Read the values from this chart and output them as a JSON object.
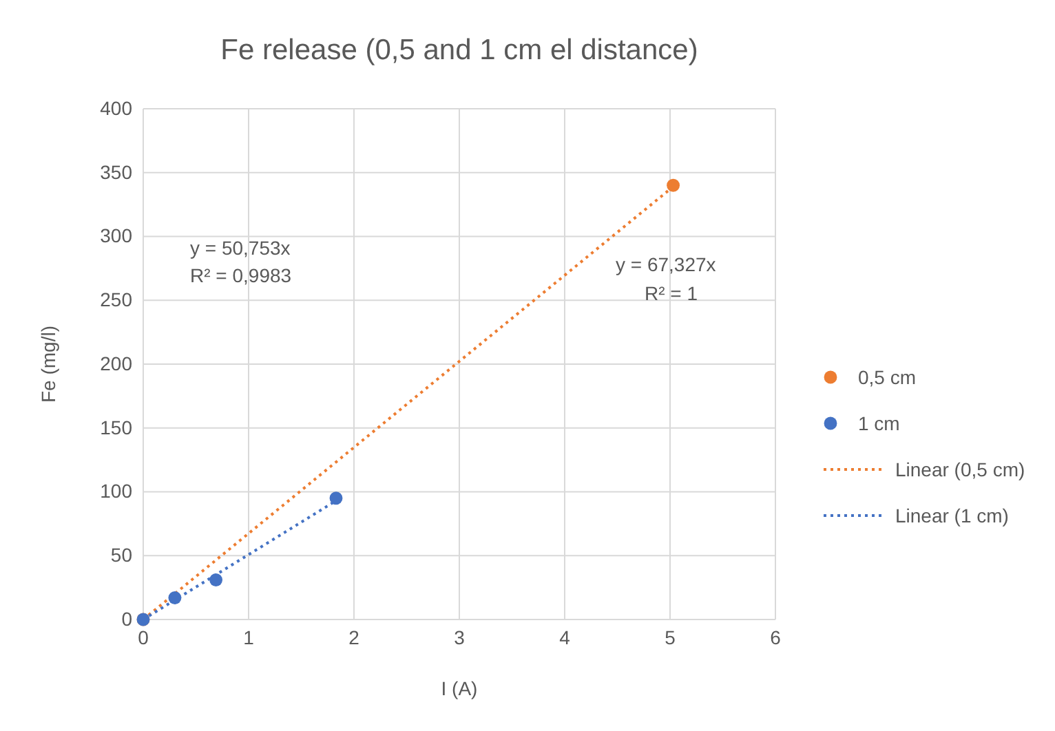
{
  "chart_data": {
    "type": "scatter",
    "title": "Fe release (0,5 and 1 cm el distance)",
    "xlabel": "I (A)",
    "ylabel": "Fe (mg/l)",
    "xlim": [
      0,
      6
    ],
    "xticks": [
      0,
      1,
      2,
      3,
      4,
      5,
      6
    ],
    "ylim": [
      0,
      400
    ],
    "yticks": [
      0,
      50,
      100,
      150,
      200,
      250,
      300,
      350,
      400
    ],
    "grid": true,
    "legend": "right",
    "series": [
      {
        "name": "0,5 cm",
        "color": "#ed7d31",
        "marker": "circle",
        "x": [
          0,
          5.03
        ],
        "values": [
          0,
          340
        ]
      },
      {
        "name": "1 cm",
        "color": "#4472c4",
        "marker": "circle",
        "x": [
          0,
          0.3,
          0.69,
          1.83
        ],
        "values": [
          0,
          17,
          31,
          95
        ]
      },
      {
        "name": "Linear (0,5 cm)",
        "type": "line",
        "line_style": "dotted",
        "marker": "none",
        "color": "#ed7d31",
        "x": [
          0,
          5.03
        ],
        "values": [
          0,
          339
        ]
      },
      {
        "name": "Linear (1 cm)",
        "type": "line",
        "line_style": "dotted",
        "marker": "none",
        "color": "#4472c4",
        "x": [
          0,
          1.83
        ],
        "values": [
          0,
          93
        ]
      }
    ],
    "annotations": [
      "y = 50,753x",
      "R² = 0,9983",
      "y = 67,327x",
      "R² = 1"
    ]
  }
}
